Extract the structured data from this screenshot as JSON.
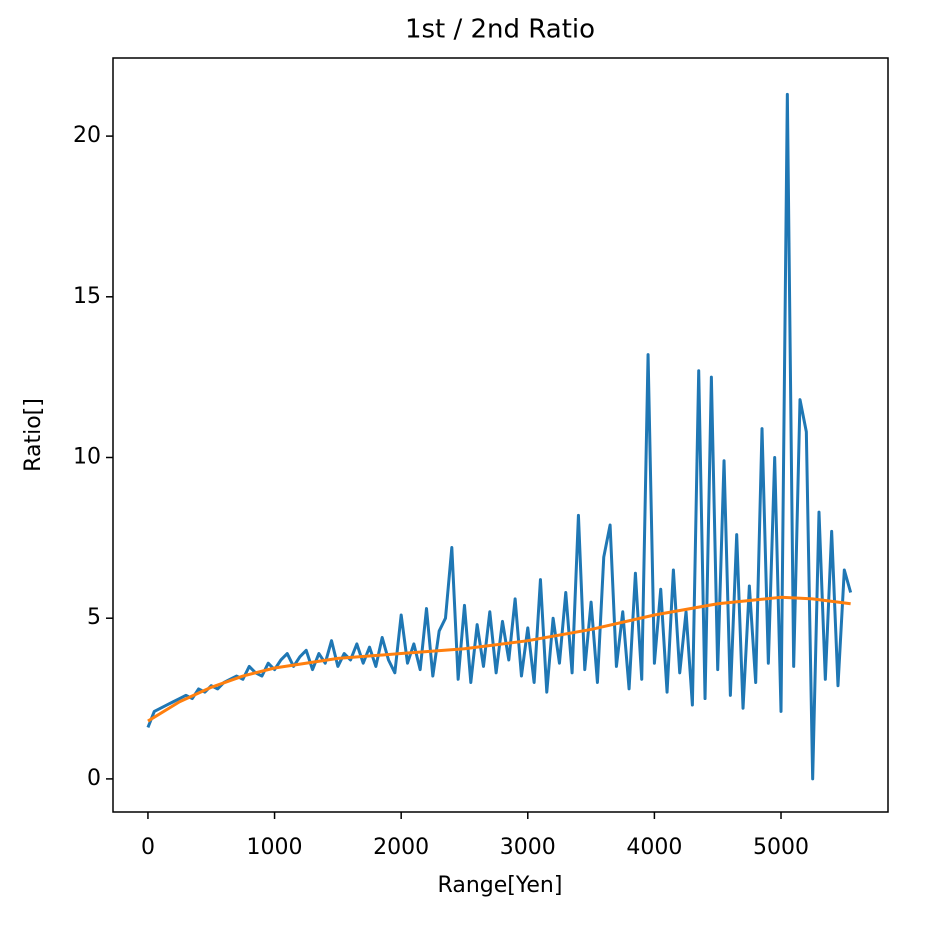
{
  "chart_data": {
    "type": "line",
    "title": "1st / 2nd Ratio",
    "x_label": "Range[Yen]",
    "y_label": "Ratio[]",
    "xlim": [
      -276,
      5845
    ],
    "ylim": [
      -1.03,
      22.43
    ],
    "xticks": [
      0,
      1000,
      2000,
      3000,
      4000,
      5000
    ],
    "yticks": [
      0,
      5,
      10,
      15,
      20
    ],
    "series": [
      {
        "color": "#1f77b4",
        "x": [
          0,
          50,
          100,
          150,
          200,
          250,
          300,
          350,
          400,
          450,
          500,
          550,
          600,
          650,
          700,
          750,
          800,
          850,
          900,
          950,
          1000,
          1050,
          1100,
          1150,
          1200,
          1250,
          1300,
          1350,
          1400,
          1450,
          1500,
          1550,
          1600,
          1650,
          1700,
          1750,
          1800,
          1850,
          1900,
          1950,
          2000,
          2050,
          2100,
          2150,
          2200,
          2250,
          2300,
          2350,
          2400,
          2450,
          2500,
          2550,
          2600,
          2650,
          2700,
          2750,
          2800,
          2850,
          2900,
          2950,
          3000,
          3050,
          3100,
          3150,
          3200,
          3250,
          3300,
          3350,
          3400,
          3450,
          3500,
          3550,
          3600,
          3650,
          3700,
          3750,
          3800,
          3850,
          3900,
          3950,
          4000,
          4050,
          4100,
          4150,
          4200,
          4250,
          4300,
          4350,
          4400,
          4450,
          4500,
          4550,
          4600,
          4650,
          4700,
          4750,
          4800,
          4850,
          4900,
          4950,
          5000,
          5050,
          5100,
          5150,
          5200,
          5250,
          5300,
          5350,
          5400,
          5450,
          5500,
          5550
        ],
        "values": [
          1.6,
          2.1,
          2.2,
          2.3,
          2.4,
          2.5,
          2.6,
          2.5,
          2.8,
          2.7,
          2.9,
          2.8,
          3.0,
          3.1,
          3.2,
          3.1,
          3.5,
          3.3,
          3.2,
          3.6,
          3.4,
          3.7,
          3.9,
          3.5,
          3.8,
          4.0,
          3.4,
          3.9,
          3.6,
          4.3,
          3.5,
          3.9,
          3.7,
          4.2,
          3.6,
          4.1,
          3.5,
          4.4,
          3.7,
          3.3,
          5.1,
          3.6,
          4.2,
          3.4,
          5.3,
          3.2,
          4.6,
          5.0,
          7.2,
          3.1,
          5.4,
          3.0,
          4.8,
          3.5,
          5.2,
          3.3,
          4.9,
          3.7,
          5.6,
          3.2,
          4.7,
          3.0,
          6.2,
          2.7,
          5.0,
          3.6,
          5.8,
          3.3,
          8.2,
          3.4,
          5.5,
          3.0,
          6.9,
          7.9,
          3.5,
          5.2,
          2.8,
          6.4,
          3.1,
          13.2,
          3.6,
          5.9,
          2.7,
          6.5,
          3.3,
          5.2,
          2.3,
          12.7,
          2.5,
          12.5,
          3.4,
          9.9,
          2.6,
          7.6,
          2.2,
          6.0,
          3.0,
          10.9,
          3.6,
          10.0,
          2.1,
          21.3,
          3.5,
          11.8,
          10.8,
          0.0,
          8.3,
          3.1,
          7.7,
          2.9,
          6.5,
          5.8
        ]
      },
      {
        "color": "#ff7f0e",
        "x": [
          0,
          250,
          500,
          750,
          1000,
          1500,
          2000,
          2500,
          3000,
          3500,
          4000,
          4500,
          5000,
          5250,
          5550
        ],
        "values": [
          1.8,
          2.4,
          2.85,
          3.2,
          3.45,
          3.75,
          3.9,
          4.05,
          4.3,
          4.65,
          5.1,
          5.45,
          5.65,
          5.6,
          5.45
        ]
      }
    ]
  }
}
